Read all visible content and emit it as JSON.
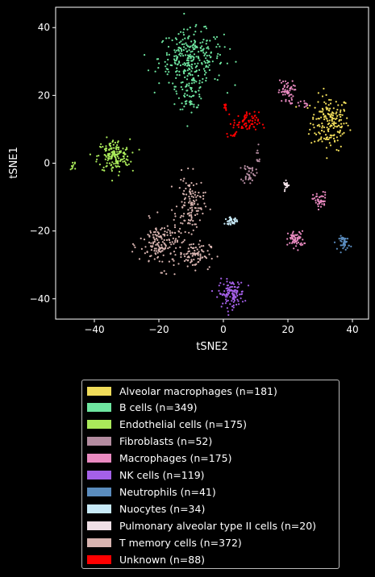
{
  "chart_data": {
    "type": "scatter",
    "xlabel": "tSNE2",
    "ylabel": "tSNE1",
    "xlim": [
      -52,
      45
    ],
    "ylim": [
      -46,
      46
    ],
    "xticks": [
      -40,
      -20,
      0,
      20,
      40
    ],
    "yticks": [
      -40,
      -20,
      0,
      20,
      40
    ],
    "background": "#000000",
    "legend_placement": "below",
    "series": [
      {
        "name": "Alveolar macrophages (n=181)",
        "color": "#f0dc5a",
        "clusters": [
          {
            "cx": 33,
            "cy": 12,
            "sx": 3.0,
            "sy": 4.0,
            "n": 181
          }
        ]
      },
      {
        "name": "B cells (n=349)",
        "color": "#6ee6a0",
        "clusters": [
          {
            "cx": -10,
            "cy": 31,
            "sx": 5.0,
            "sy": 4.0,
            "n": 280
          },
          {
            "cx": -10,
            "cy": 21,
            "sx": 2.0,
            "sy": 2.5,
            "n": 69
          }
        ]
      },
      {
        "name": "Endothelial cells (n=175)",
        "color": "#aaea5a",
        "clusters": [
          {
            "cx": -34,
            "cy": 2,
            "sx": 2.5,
            "sy": 2.5,
            "n": 165
          },
          {
            "cx": -46.5,
            "cy": -0.5,
            "sx": 0.5,
            "sy": 0.8,
            "n": 10
          }
        ]
      },
      {
        "name": "Fibroblasts (n=52)",
        "color": "#b48ca0",
        "clusters": [
          {
            "cx": 8,
            "cy": -3,
            "sx": 1.0,
            "sy": 1.5,
            "n": 42
          },
          {
            "cx": 10.5,
            "cy": 2,
            "sx": 0.6,
            "sy": 1.5,
            "n": 10
          }
        ]
      },
      {
        "name": "Macrophages (n=175)",
        "color": "#e98ac0",
        "clusters": [
          {
            "cx": 19.5,
            "cy": 21,
            "sx": 1.2,
            "sy": 1.8,
            "n": 55
          },
          {
            "cx": 24.5,
            "cy": 17.5,
            "sx": 0.8,
            "sy": 0.6,
            "n": 10
          },
          {
            "cx": 30,
            "cy": -11,
            "sx": 1.1,
            "sy": 1.2,
            "n": 45
          },
          {
            "cx": 22.5,
            "cy": -22.5,
            "sx": 1.2,
            "sy": 1.2,
            "n": 65
          }
        ]
      },
      {
        "name": "NK cells (n=119)",
        "color": "#a460e8",
        "clusters": [
          {
            "cx": 2.5,
            "cy": -38.5,
            "sx": 2.0,
            "sy": 2.0,
            "n": 119
          }
        ]
      },
      {
        "name": "Neutrophils (n=41)",
        "color": "#5a8cbe",
        "clusters": [
          {
            "cx": 37.5,
            "cy": -23.5,
            "sx": 0.8,
            "sy": 1.0,
            "n": 41
          }
        ]
      },
      {
        "name": "Nuocytes (n=34)",
        "color": "#c8eaf8",
        "clusters": [
          {
            "cx": 2.5,
            "cy": -17,
            "sx": 1.0,
            "sy": 0.5,
            "n": 34
          }
        ]
      },
      {
        "name": "Pulmonary alveolar type II cells (n=20)",
        "color": "#f0e0e6",
        "clusters": [
          {
            "cx": 19.5,
            "cy": -6.5,
            "sx": 0.4,
            "sy": 0.6,
            "n": 20
          }
        ]
      },
      {
        "name": "T memory cells (n=372)",
        "color": "#d8b4b0",
        "clusters": [
          {
            "cx": -19,
            "cy": -24,
            "sx": 3.5,
            "sy": 3.5,
            "n": 170
          },
          {
            "cx": -10,
            "cy": -12,
            "sx": 2.0,
            "sy": 4.0,
            "n": 120
          },
          {
            "cx": -9,
            "cy": -27,
            "sx": 2.5,
            "sy": 2.0,
            "n": 82
          }
        ]
      },
      {
        "name": "Unknown (n=88)",
        "color": "#ff0000",
        "clusters": [
          {
            "cx": 7,
            "cy": 12,
            "sx": 2.0,
            "sy": 1.5,
            "n": 70
          },
          {
            "cx": 0.5,
            "cy": 16,
            "sx": 0.4,
            "sy": 0.8,
            "n": 8
          },
          {
            "cx": 3,
            "cy": 8.5,
            "sx": 1.0,
            "sy": 0.5,
            "n": 10
          }
        ]
      }
    ]
  }
}
